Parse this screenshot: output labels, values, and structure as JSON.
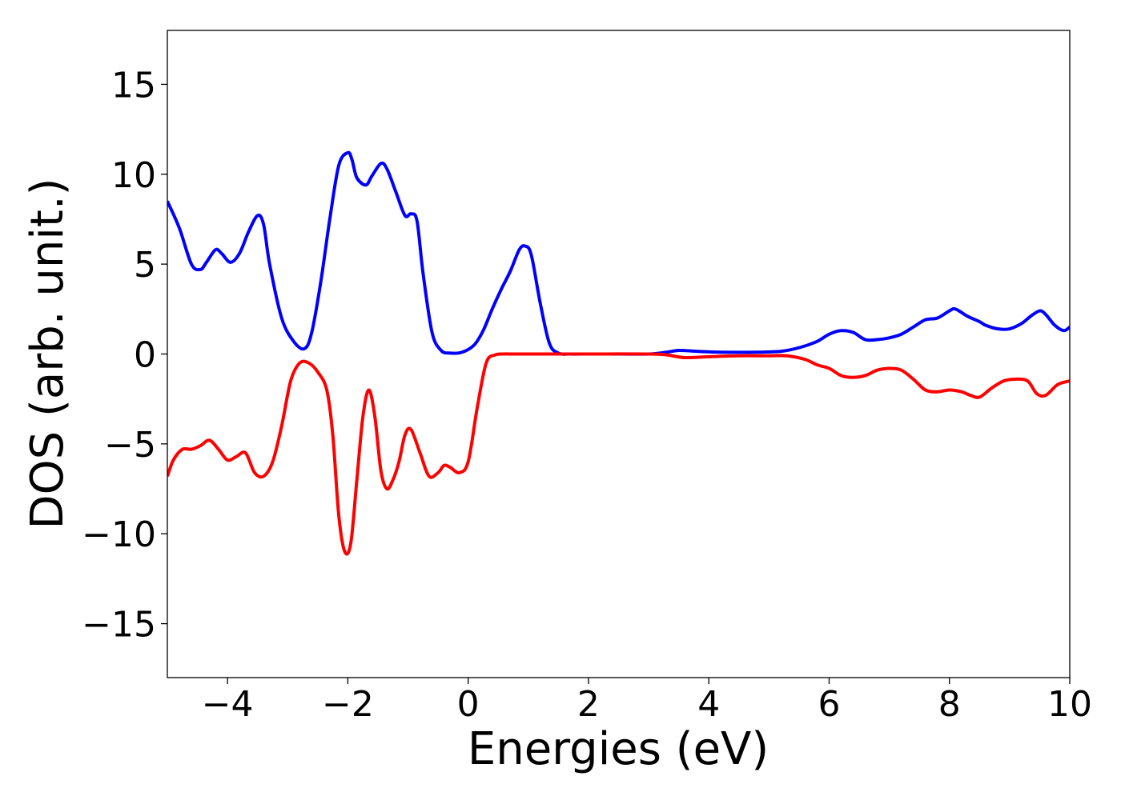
{
  "chart_data": {
    "type": "line",
    "title": "",
    "xlabel": "Energies (eV)",
    "ylabel": "DOS (arb. unit.)",
    "xlim": [
      -5,
      10
    ],
    "ylim": [
      -18,
      18
    ],
    "x_ticks": [
      -4,
      -2,
      0,
      2,
      4,
      6,
      8,
      10
    ],
    "x_tick_labels": [
      "−4",
      "−2",
      "0",
      "2",
      "4",
      "6",
      "8",
      "10"
    ],
    "y_ticks": [
      15,
      10,
      5,
      0,
      -5,
      -10,
      -15
    ],
    "y_tick_labels": [
      "15",
      "10",
      "5",
      "0",
      "−5",
      "−10",
      "−15"
    ],
    "grid": false,
    "legend": "none",
    "series": [
      {
        "color": "#0000ff",
        "x": [
          -5.0,
          -4.8,
          -4.6,
          -4.45,
          -4.35,
          -4.2,
          -4.1,
          -3.95,
          -3.8,
          -3.65,
          -3.5,
          -3.4,
          -3.3,
          -3.1,
          -2.9,
          -2.72,
          -2.6,
          -2.45,
          -2.3,
          -2.15,
          -2.0,
          -1.93,
          -1.85,
          -1.7,
          -1.6,
          -1.45,
          -1.35,
          -1.2,
          -1.05,
          -0.95,
          -0.85,
          -0.75,
          -0.6,
          -0.45,
          -0.3,
          -0.1,
          0.1,
          0.25,
          0.4,
          0.55,
          0.7,
          0.85,
          0.95,
          1.05,
          1.2,
          1.35,
          1.5,
          1.7,
          2.0,
          2.5,
          3.0,
          3.3,
          3.5,
          3.8,
          4.2,
          4.8,
          5.2,
          5.5,
          5.8,
          6.0,
          6.2,
          6.4,
          6.6,
          6.8,
          7.0,
          7.2,
          7.4,
          7.6,
          7.8,
          8.0,
          8.1,
          8.3,
          8.5,
          8.6,
          8.8,
          9.0,
          9.2,
          9.35,
          9.5,
          9.6,
          9.75,
          9.9,
          10.0
        ],
        "y": [
          8.5,
          7.0,
          5.0,
          4.7,
          5.1,
          5.8,
          5.6,
          5.1,
          5.6,
          6.8,
          7.7,
          7.2,
          5.0,
          2.0,
          0.7,
          0.3,
          1.2,
          4.0,
          7.5,
          10.5,
          11.2,
          10.8,
          9.8,
          9.4,
          9.9,
          10.6,
          10.3,
          9.0,
          7.7,
          7.8,
          7.4,
          4.5,
          1.2,
          0.2,
          0.05,
          0.1,
          0.5,
          1.3,
          2.5,
          3.6,
          4.6,
          5.8,
          6.0,
          5.5,
          2.8,
          0.6,
          0.05,
          0.0,
          0.0,
          0.0,
          0.0,
          0.1,
          0.2,
          0.15,
          0.1,
          0.1,
          0.15,
          0.35,
          0.7,
          1.1,
          1.3,
          1.2,
          0.8,
          0.8,
          0.9,
          1.1,
          1.5,
          1.9,
          2.0,
          2.4,
          2.5,
          2.1,
          1.8,
          1.6,
          1.4,
          1.4,
          1.7,
          2.1,
          2.4,
          2.2,
          1.6,
          1.3,
          1.5
        ]
      },
      {
        "color": "#ff0000",
        "x": [
          -5.0,
          -4.9,
          -4.75,
          -4.6,
          -4.45,
          -4.3,
          -4.15,
          -4.0,
          -3.85,
          -3.7,
          -3.55,
          -3.4,
          -3.25,
          -3.1,
          -2.95,
          -2.8,
          -2.65,
          -2.5,
          -2.35,
          -2.25,
          -2.15,
          -2.05,
          -1.95,
          -1.85,
          -1.75,
          -1.65,
          -1.55,
          -1.45,
          -1.35,
          -1.25,
          -1.15,
          -1.05,
          -0.95,
          -0.8,
          -0.65,
          -0.5,
          -0.4,
          -0.3,
          -0.15,
          0.0,
          0.15,
          0.3,
          0.45,
          0.6,
          0.7,
          0.8,
          0.95,
          1.1,
          1.3,
          1.5,
          2.0,
          3.0,
          3.3,
          3.6,
          4.0,
          4.5,
          5.0,
          5.3,
          5.6,
          5.8,
          6.0,
          6.2,
          6.4,
          6.6,
          6.8,
          7.0,
          7.2,
          7.4,
          7.6,
          7.8,
          8.0,
          8.2,
          8.35,
          8.5,
          8.7,
          8.9,
          9.1,
          9.3,
          9.45,
          9.6,
          9.8,
          10.0
        ],
        "y": [
          -6.8,
          -5.9,
          -5.3,
          -5.3,
          -5.1,
          -4.8,
          -5.3,
          -5.9,
          -5.7,
          -5.5,
          -6.6,
          -6.8,
          -6.0,
          -4.0,
          -1.5,
          -0.5,
          -0.5,
          -1.0,
          -2.0,
          -4.5,
          -9.0,
          -11.0,
          -10.5,
          -7.0,
          -3.5,
          -2.0,
          -3.5,
          -6.5,
          -7.5,
          -7.0,
          -6.0,
          -4.5,
          -4.2,
          -5.5,
          -6.8,
          -6.6,
          -6.2,
          -6.3,
          -6.6,
          -6.0,
          -3.0,
          -0.5,
          -0.05,
          0.0,
          0.0,
          0.0,
          0.0,
          0.0,
          0.0,
          0.0,
          0.0,
          0.0,
          -0.05,
          -0.2,
          -0.15,
          -0.1,
          -0.1,
          -0.1,
          -0.3,
          -0.6,
          -0.8,
          -1.2,
          -1.3,
          -1.2,
          -0.9,
          -0.8,
          -0.9,
          -1.4,
          -2.0,
          -2.1,
          -2.0,
          -2.1,
          -2.3,
          -2.4,
          -1.9,
          -1.5,
          -1.4,
          -1.5,
          -2.2,
          -2.3,
          -1.7,
          -1.5
        ]
      }
    ]
  }
}
